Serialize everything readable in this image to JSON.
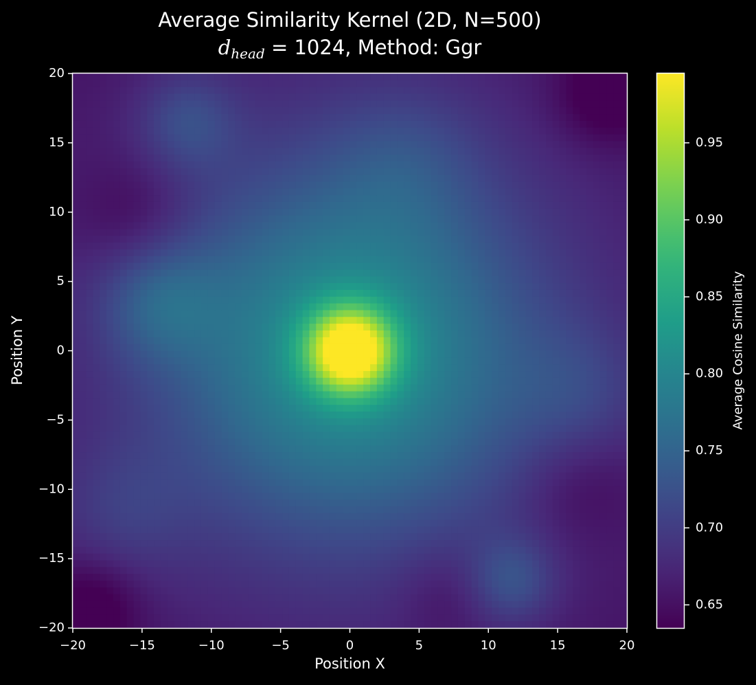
{
  "title": {
    "line1": "Average Similarity Kernel (2D, N=500)",
    "line2_var": "d",
    "line2_sub": "head",
    "line2_rest": " = 1024, Method: Ggr"
  },
  "colors": {
    "background": "#000000",
    "text": "#ffffff",
    "colormap": [
      "#440154",
      "#482878",
      "#3e4989",
      "#31688e",
      "#26828e",
      "#1f9e89",
      "#35b779",
      "#6ece58",
      "#b5de2b",
      "#fde725"
    ]
  },
  "chart_data": {
    "type": "heatmap",
    "colormap": "viridis",
    "xlabel": "Position X",
    "ylabel": "Position Y",
    "xlim": [
      -20,
      20
    ],
    "ylim": [
      -20,
      20
    ],
    "x_ticks": [
      -20,
      -15,
      -10,
      -5,
      0,
      5,
      10,
      15,
      20
    ],
    "y_ticks": [
      -20,
      -15,
      -10,
      -5,
      0,
      5,
      10,
      15,
      20
    ],
    "x_tick_labels": [
      "−20",
      "−15",
      "−10",
      "−5",
      "0",
      "5",
      "10",
      "15",
      "20"
    ],
    "y_tick_labels": [
      "−20",
      "−15",
      "−10",
      "−5",
      "0",
      "5",
      "10",
      "15",
      "20"
    ],
    "grid_step": 1,
    "grid_points": 41,
    "grid_resolution": 2,
    "colorbar": {
      "label": "Average Cosine Similarity",
      "vmin": 0.635,
      "vmax": 0.995,
      "ticks": [
        0.65,
        0.7,
        0.75,
        0.8,
        0.85,
        0.9,
        0.95
      ],
      "tick_labels": [
        "0.65",
        "0.70",
        "0.75",
        "0.80",
        "0.85",
        "0.90",
        "0.95"
      ]
    },
    "field": {
      "description_of_values": "estimated average cosine similarity at each (x,y)",
      "base": 0.638,
      "bumps": [
        {
          "x": 0,
          "y": 0,
          "amp": 0.25,
          "sigma": 2.2
        },
        {
          "x": 0,
          "y": 0,
          "amp": 0.135,
          "sigma": 9
        },
        {
          "x": 0,
          "y": 0,
          "amp": 0.05,
          "sigma": 20
        },
        {
          "x": -14,
          "y": 3.5,
          "amp": 0.055,
          "sigma": 3
        },
        {
          "x": -12,
          "y": 17,
          "amp": 0.05,
          "sigma": 2.5
        },
        {
          "x": 12,
          "y": -17,
          "amp": 0.055,
          "sigma": 2.2
        },
        {
          "x": -17,
          "y": -12,
          "amp": 0.03,
          "sigma": 3.5
        },
        {
          "x": 17,
          "y": -3,
          "amp": 0.03,
          "sigma": 3.5
        },
        {
          "x": 4,
          "y": 14,
          "amp": 0.03,
          "sigma": 4
        },
        {
          "x": -16,
          "y": 10,
          "amp": -0.03,
          "sigma": 3
        },
        {
          "x": -19,
          "y": -19,
          "amp": -0.04,
          "sigma": 2.5
        },
        {
          "x": 19,
          "y": 19,
          "amp": -0.045,
          "sigma": 2.5
        },
        {
          "x": 17,
          "y": -10,
          "amp": -0.025,
          "sigma": 3
        },
        {
          "x": 7,
          "y": -18,
          "amp": -0.02,
          "sigma": 2.5
        }
      ]
    }
  }
}
